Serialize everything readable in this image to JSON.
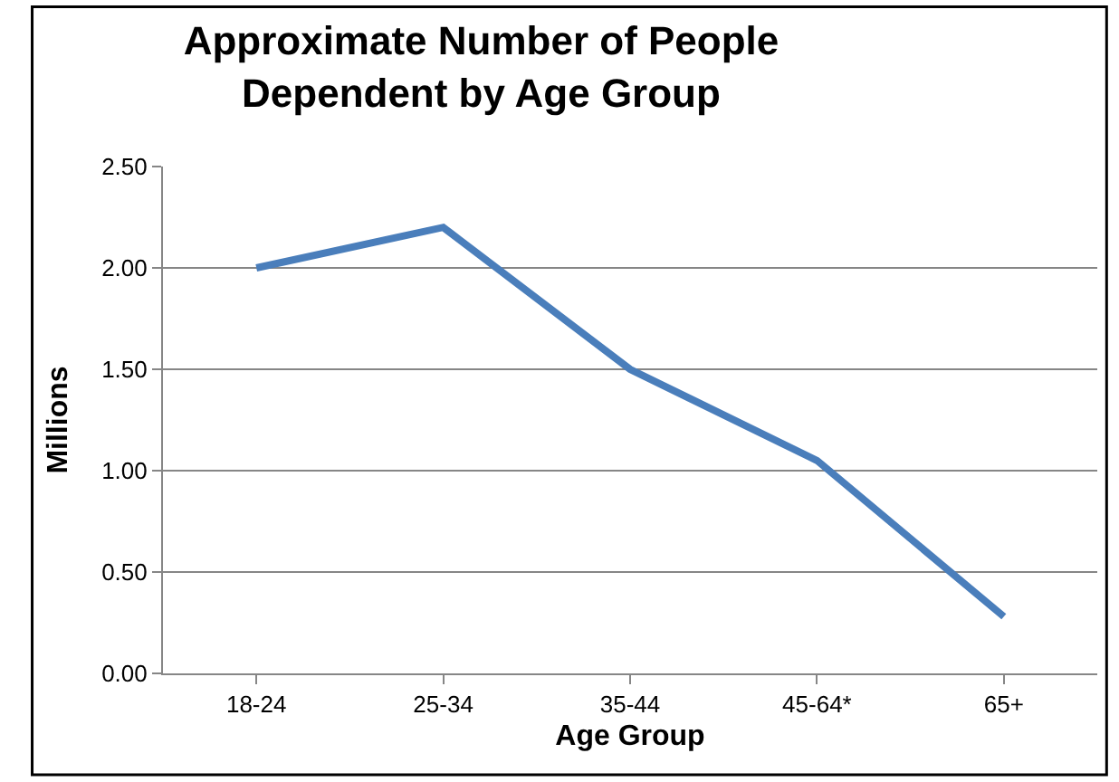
{
  "chart_data": {
    "type": "line",
    "title": "Approximate Number of People\nDependent by Age Group",
    "xlabel": "Age Group",
    "ylabel": "Millions",
    "categories": [
      "18-24",
      "25-34",
      "35-44",
      "45-64*",
      "65+"
    ],
    "series": [
      {
        "color": "#4a7ebb",
        "values": [
          2.0,
          2.2,
          1.5,
          1.05,
          0.28
        ]
      }
    ],
    "ylim": [
      0,
      2.5
    ],
    "yticks": [
      {
        "value": 0,
        "label": "0.00"
      },
      {
        "value": 0.5,
        "label": "0.50"
      },
      {
        "value": 1,
        "label": "1.00"
      },
      {
        "value": 1.5,
        "label": "1.50"
      },
      {
        "value": 2,
        "label": "2.00"
      },
      {
        "value": 2.5,
        "label": "2.50"
      }
    ],
    "grid": "y",
    "legend": false,
    "marker": "none",
    "line_style": "solid"
  }
}
